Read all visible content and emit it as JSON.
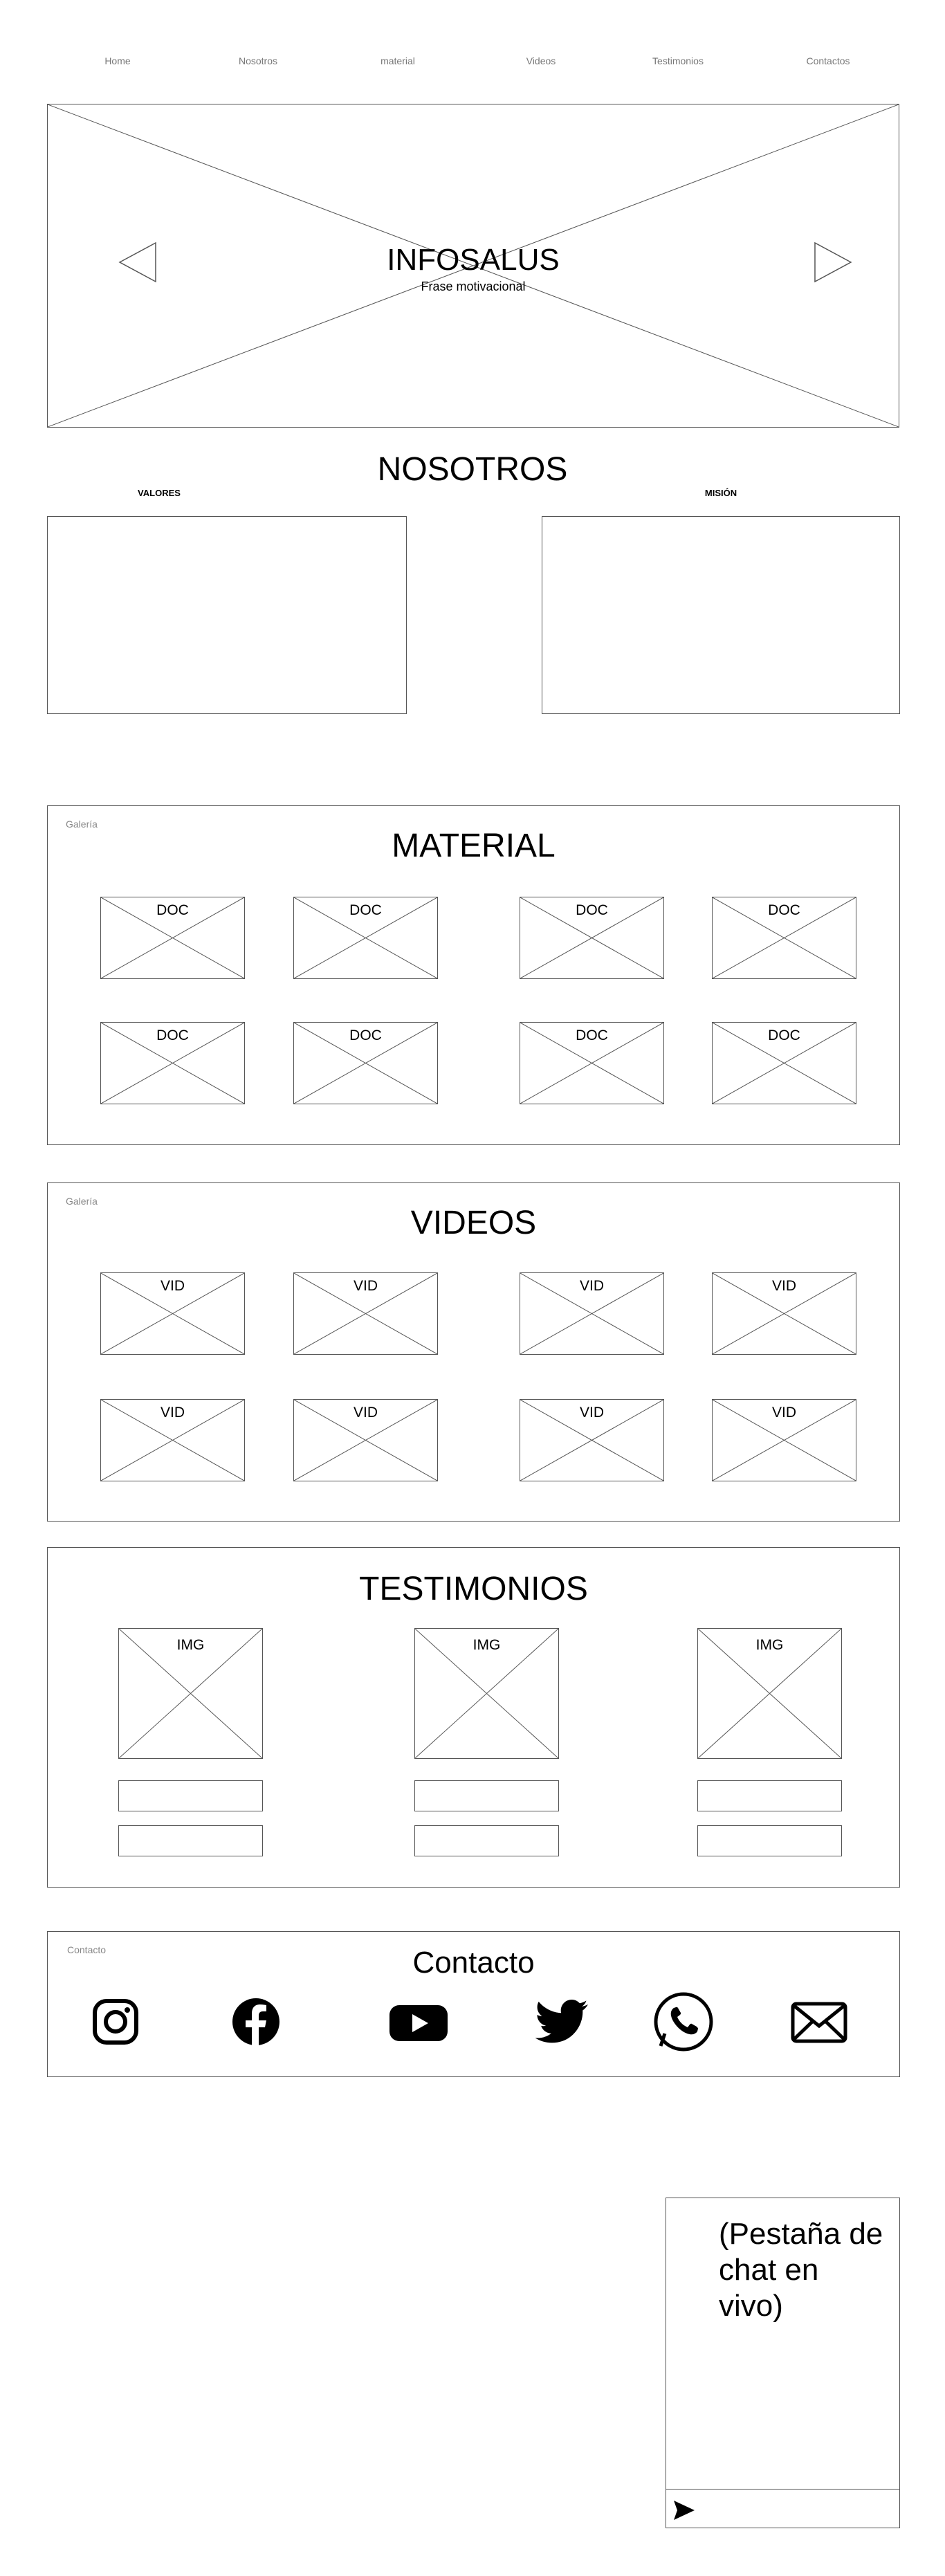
{
  "nav": {
    "items": [
      "Home",
      "Nosotros",
      "material",
      "Videos",
      "Testimonios",
      "Contactos"
    ]
  },
  "hero": {
    "title": "INFOSALUS",
    "subtitle": "Frase motivacional"
  },
  "nosotros": {
    "title": "NOSOTROS",
    "valores_label": "VALORES",
    "mision_label": "MISIÓN"
  },
  "material": {
    "corner_label": "Galería",
    "title": "MATERIAL",
    "item_label": "DOC"
  },
  "videos": {
    "corner_label": "Galería",
    "title": "VIDEOS",
    "item_label": "VID"
  },
  "testimonios": {
    "title": "TESTIMONIOS",
    "item_label": "IMG"
  },
  "contacto": {
    "corner_label": "Contacto",
    "title": "Contacto",
    "icons": [
      "instagram-icon",
      "facebook-icon",
      "youtube-icon",
      "twitter-icon",
      "whatsapp-icon",
      "mail-icon"
    ]
  },
  "chat": {
    "placeholder_text": "(Pestaña de chat en vivo)"
  }
}
